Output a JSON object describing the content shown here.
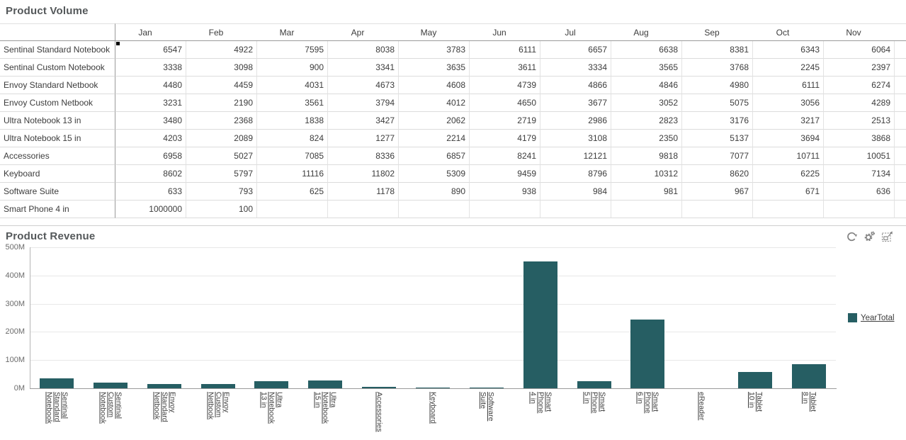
{
  "volume_panel": {
    "title": "Product Volume",
    "months": [
      "Jan",
      "Feb",
      "Mar",
      "Apr",
      "May",
      "Jun",
      "Jul",
      "Aug",
      "Sep",
      "Oct",
      "Nov"
    ],
    "rows": [
      {
        "product": "Sentinal Standard Notebook",
        "values": [
          6547,
          4922,
          7595,
          8038,
          3783,
          6111,
          6657,
          6638,
          8381,
          6343,
          6064
        ]
      },
      {
        "product": "Sentinal Custom Notebook",
        "values": [
          3338,
          3098,
          900,
          3341,
          3635,
          3611,
          3334,
          3565,
          3768,
          2245,
          2397
        ]
      },
      {
        "product": "Envoy Standard Netbook",
        "values": [
          4480,
          4459,
          4031,
          4673,
          4608,
          4739,
          4866,
          4846,
          4980,
          6111,
          6274
        ]
      },
      {
        "product": "Envoy Custom Netbook",
        "values": [
          3231,
          2190,
          3561,
          3794,
          4012,
          4650,
          3677,
          3052,
          5075,
          3056,
          4289
        ]
      },
      {
        "product": "Ultra Notebook 13 in",
        "values": [
          3480,
          2368,
          1838,
          3427,
          2062,
          2719,
          2986,
          2823,
          3176,
          3217,
          2513
        ]
      },
      {
        "product": "Ultra Notebook 15 in",
        "values": [
          4203,
          2089,
          824,
          1277,
          2214,
          4179,
          3108,
          2350,
          5137,
          3694,
          3868
        ]
      },
      {
        "product": "Accessories",
        "values": [
          6958,
          5027,
          7085,
          8336,
          6857,
          8241,
          12121,
          9818,
          7077,
          10711,
          10051
        ]
      },
      {
        "product": "Keyboard",
        "values": [
          8602,
          5797,
          11116,
          11802,
          5309,
          9459,
          8796,
          10312,
          8620,
          6225,
          7134
        ]
      },
      {
        "product": "Software Suite",
        "values": [
          633,
          793,
          625,
          1178,
          890,
          938,
          984,
          981,
          967,
          671,
          636
        ]
      },
      {
        "product": "Smart Phone 4 in",
        "values": [
          1000000,
          100,
          "",
          "",
          "",
          "",
          "",
          "",
          "",
          "",
          ""
        ]
      }
    ],
    "selection_marker": "first-data-cell"
  },
  "revenue_panel": {
    "title": "Product Revenue",
    "toolbar": [
      {
        "name": "refresh",
        "icon": "refresh-icon"
      },
      {
        "name": "settings",
        "icon": "gears-icon"
      },
      {
        "name": "maximize",
        "icon": "expand-icon"
      }
    ],
    "legend": {
      "label": "YearTotal",
      "color": "#265e63"
    }
  },
  "chart_data": {
    "type": "bar",
    "title": "Product Revenue",
    "categories": [
      "Sentinal Standard Notebook",
      "Sentinal Custom Notebook",
      "Envoy Standard Netbook",
      "Envoy Custom Netbook",
      "Ultra Notebook 13 in",
      "Ultra Notebook 15 in",
      "Accessories",
      "Keyboard",
      "Software Suite",
      "Smart Phone 4 in",
      "Smart Phone 5 in",
      "Smart Phone 6 in",
      "eReader",
      "Tablet 10 in",
      "Tablet 8 in"
    ],
    "category_label_lines": [
      [
        "Sentinal",
        "Standard",
        "Notebook"
      ],
      [
        "Sentinal",
        "Custom",
        "Notebook"
      ],
      [
        "Envoy",
        "Standard",
        "Netbook"
      ],
      [
        "Envoy",
        "Custom",
        "Netbook"
      ],
      [
        "Ultra",
        "Notebook",
        "13 in"
      ],
      [
        "Ultra",
        "Notebook",
        "15 in"
      ],
      [
        "Accessories"
      ],
      [
        "Keyboard"
      ],
      [
        "Software",
        "Suite"
      ],
      [
        "Smart",
        "Phone",
        "4 in"
      ],
      [
        "Smart",
        "Phone",
        "5 in"
      ],
      [
        "Smart",
        "Phone",
        "6 in"
      ],
      [
        "eReader"
      ],
      [
        "Tablet",
        "10 in"
      ],
      [
        "Tablet",
        "8 in"
      ]
    ],
    "series": [
      {
        "name": "YearTotal",
        "values": [
          34,
          20,
          15,
          14,
          24,
          28,
          6,
          2,
          2,
          450,
          25,
          245,
          1,
          57,
          85
        ]
      }
    ],
    "unit": "M (millions)",
    "ytick_labels": [
      "500M",
      "400M",
      "300M",
      "200M",
      "100M",
      "0M"
    ],
    "ylim": [
      0,
      500
    ],
    "xlabel": "",
    "ylabel": "",
    "grid": "horizontal",
    "legend_position": "right",
    "bar_color": "#265e63"
  },
  "colors": {
    "bar_accent": "#265e63",
    "panel_title": "#54585a",
    "table_grid_light": "#dcdcdc",
    "table_grid_dark": "#9a9a9a",
    "axis_line": "#9b9b9b",
    "gridline": "#e8e8e8",
    "icon_gray": "#828282"
  }
}
